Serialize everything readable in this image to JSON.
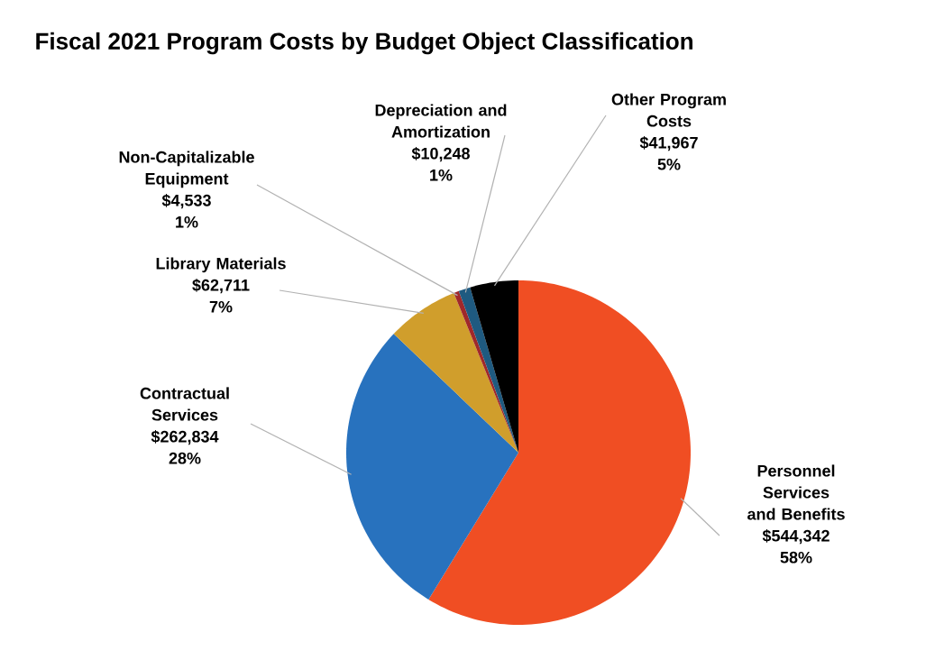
{
  "chart_data": {
    "type": "pie",
    "title": "Fiscal 2021 Program Costs by Budget Object Classification",
    "categories": [
      "Personnel Services and Benefits",
      "Contractual Services",
      "Library Materials",
      "Non-Capitalizable Equipment",
      "Depreciation and Amortization",
      "Other Program Costs"
    ],
    "values": [
      544342,
      262834,
      62711,
      4533,
      10248,
      41967
    ],
    "colors": [
      "#f04e23",
      "#2872be",
      "#d09e2c",
      "#a0282a",
      "#1f5a80",
      "#000000"
    ],
    "value_labels": [
      "$544,342",
      "$262,834",
      "$62,711",
      "$4,533",
      "$10,248",
      "$41,967"
    ],
    "annotations": [
      "58%",
      "28%",
      "7%",
      "1%",
      "1%",
      "5%"
    ]
  }
}
